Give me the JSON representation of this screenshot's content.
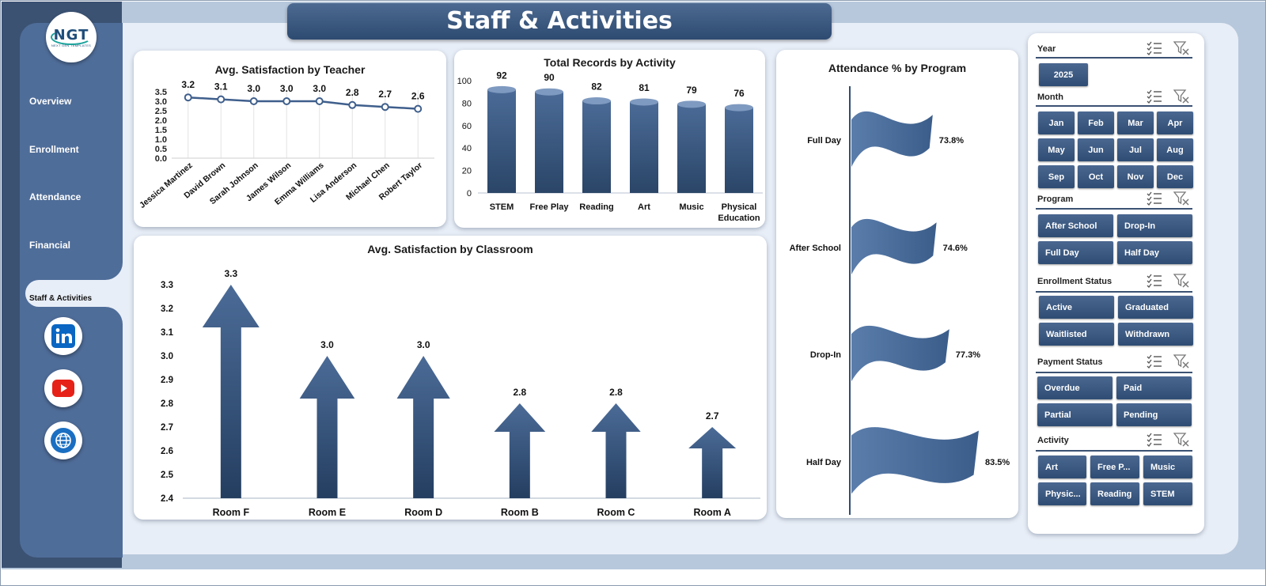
{
  "header": {
    "title": "Staff & Activities"
  },
  "logo": {
    "text": "NGT",
    "subtext": "NEXT GEN TEMPLATES"
  },
  "nav": {
    "items": [
      {
        "label": "Overview"
      },
      {
        "label": "Enrollment"
      },
      {
        "label": "Attendance"
      },
      {
        "label": "Financial"
      },
      {
        "label": "Staff & Activities"
      }
    ],
    "active": "Staff & Activities"
  },
  "social": [
    "linkedin-icon",
    "youtube-icon",
    "globe-icon"
  ],
  "colors": {
    "accent": "#3b5d8a",
    "accent_dark": "#2a4567",
    "sidebar": "#4f6d99",
    "panel_bg": "#e8eef7"
  },
  "teacher_chart": {
    "title": "Avg. Satisfaction by Teacher",
    "chart_data": {
      "type": "line",
      "categories": [
        "Jessica Martinez",
        "David Brown",
        "Sarah Johnson",
        "James Wilson",
        "Emma Williams",
        "Lisa Anderson",
        "Michael Chen",
        "Robert Taylor"
      ],
      "values": [
        3.2,
        3.1,
        3.0,
        3.0,
        3.0,
        2.8,
        2.7,
        2.6
      ],
      "value_labels": [
        "3.2",
        "3.1",
        "3.0",
        "3.0",
        "3.0",
        "2.8",
        "2.7",
        "2.6"
      ],
      "ylim": [
        0,
        3.5
      ],
      "y_ticks": [
        "3.5",
        "3.0",
        "2.5",
        "2.0",
        "1.5",
        "1.0",
        "0.5",
        "0.0"
      ]
    }
  },
  "activity_chart": {
    "title": "Total Records by Activity",
    "chart_data": {
      "type": "bar",
      "categories": [
        "STEM",
        "Free Play",
        "Reading",
        "Art",
        "Music",
        "Physical Education"
      ],
      "category_lines": [
        [
          "STEM"
        ],
        [
          "Free Play"
        ],
        [
          "Reading"
        ],
        [
          "Art"
        ],
        [
          "Music"
        ],
        [
          "Physical",
          "Education"
        ]
      ],
      "values": [
        92,
        90,
        82,
        81,
        79,
        76
      ],
      "ylim": [
        0,
        100
      ],
      "y_ticks": [
        "100",
        "80",
        "60",
        "40",
        "20",
        "0"
      ]
    }
  },
  "classroom_chart": {
    "title": "Avg. Satisfaction by Classroom",
    "chart_data": {
      "type": "bar",
      "categories": [
        "Room F",
        "Room E",
        "Room D",
        "Room B",
        "Room C",
        "Room A"
      ],
      "values": [
        3.3,
        3.0,
        3.0,
        2.8,
        2.8,
        2.7
      ],
      "value_labels": [
        "3.3",
        "3.0",
        "3.0",
        "2.8",
        "2.8",
        "2.7"
      ],
      "ylim": [
        2.4,
        3.3
      ],
      "y_ticks": [
        "3.3",
        "3.2",
        "3.1",
        "3.0",
        "2.9",
        "2.8",
        "2.7",
        "2.6",
        "2.5",
        "2.4"
      ]
    }
  },
  "program_chart": {
    "title": "Attendance % by Program",
    "chart_data": {
      "type": "bar",
      "categories": [
        "Full Day",
        "After School",
        "Drop-In",
        "Half Day"
      ],
      "values": [
        73.8,
        74.6,
        77.3,
        83.5
      ],
      "value_labels": [
        "73.8%",
        "74.6%",
        "77.3%",
        "83.5%"
      ]
    }
  },
  "slicers": {
    "year": {
      "label": "Year",
      "items": [
        "2025"
      ]
    },
    "month": {
      "label": "Month",
      "items": [
        "Jan",
        "Feb",
        "Mar",
        "Apr",
        "May",
        "Jun",
        "Jul",
        "Aug",
        "Sep",
        "Oct",
        "Nov",
        "Dec"
      ]
    },
    "program": {
      "label": "Program",
      "items": [
        "After School",
        "Drop-In",
        "Full Day",
        "Half Day"
      ]
    },
    "enrollment_status": {
      "label": "Enrollment Status",
      "items": [
        "Active",
        "Graduated",
        "Waitlisted",
        "Withdrawn"
      ]
    },
    "payment_status": {
      "label": "Payment Status",
      "items": [
        "Overdue",
        "Paid",
        "Partial",
        "Pending"
      ]
    },
    "activity": {
      "label": "Activity",
      "items": [
        "Art",
        "Free P...",
        "Music",
        "Physic...",
        "Reading",
        "STEM"
      ]
    }
  }
}
